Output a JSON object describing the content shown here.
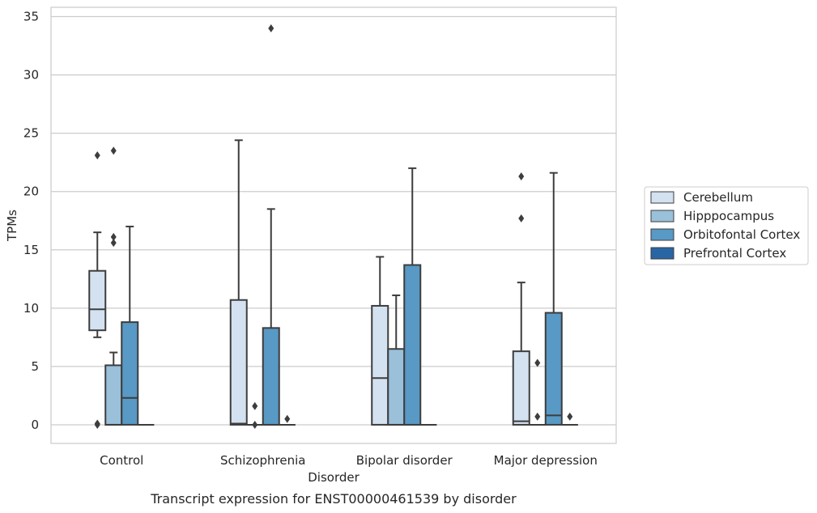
{
  "chart_data": {
    "type": "box",
    "title": "Transcript expression for ENST00000461539 by disorder",
    "xlabel": "Disorder",
    "ylabel": "TPMs",
    "ylim": [
      -1.6,
      35.8
    ],
    "yticks": [
      0,
      5,
      10,
      15,
      20,
      25,
      30,
      35
    ],
    "categories": [
      "Control",
      "Schizophrenia",
      "Bipolar disorder",
      "Major depression"
    ],
    "grid": "horizontal",
    "legend_position": "right",
    "series": [
      {
        "name": "Cerebellum",
        "color": "#d3e1f0",
        "boxes": [
          {
            "q1": 8.1,
            "median": 9.9,
            "q3": 13.2,
            "whisker_low": 7.5,
            "whisker_high": 16.5,
            "outliers": [
              23.1,
              0.0,
              0.1
            ]
          },
          {
            "q1": 0.0,
            "median": 0.1,
            "q3": 10.7,
            "whisker_low": 0.0,
            "whisker_high": 24.4,
            "outliers": []
          },
          {
            "q1": 0.0,
            "median": 4.0,
            "q3": 10.2,
            "whisker_low": 0.0,
            "whisker_high": 14.4,
            "outliers": []
          },
          {
            "q1": 0.0,
            "median": 0.3,
            "q3": 6.3,
            "whisker_low": 0.0,
            "whisker_high": 12.2,
            "outliers": [
              21.3,
              17.7
            ]
          }
        ]
      },
      {
        "name": "Hipppocampus",
        "color": "#9ac0da",
        "boxes": [
          {
            "q1": 0.0,
            "median": 0.0,
            "q3": 5.1,
            "whisker_low": 0.0,
            "whisker_high": 6.2,
            "outliers": [
              23.5,
              16.1,
              15.6
            ]
          },
          {
            "q1": 0.0,
            "median": 0.0,
            "q3": 0.0,
            "whisker_low": 0.0,
            "whisker_high": 0.0,
            "outliers": [
              1.6,
              0.0
            ]
          },
          {
            "q1": 0.0,
            "median": 0.0,
            "q3": 6.5,
            "whisker_low": 0.0,
            "whisker_high": 11.1,
            "outliers": []
          },
          {
            "q1": 0.0,
            "median": 0.0,
            "q3": 0.0,
            "whisker_low": 0.0,
            "whisker_high": 0.0,
            "outliers": [
              5.3,
              0.7
            ]
          }
        ]
      },
      {
        "name": "Orbitofontal Cortex",
        "color": "#5899c5",
        "boxes": [
          {
            "q1": 0.0,
            "median": 2.3,
            "q3": 8.8,
            "whisker_low": 0.0,
            "whisker_high": 17.0,
            "outliers": []
          },
          {
            "q1": 0.0,
            "median": 0.0,
            "q3": 8.3,
            "whisker_low": 0.0,
            "whisker_high": 18.5,
            "outliers": [
              34.0
            ]
          },
          {
            "q1": 0.0,
            "median": 0.0,
            "q3": 13.7,
            "whisker_low": 0.0,
            "whisker_high": 22.0,
            "outliers": []
          },
          {
            "q1": 0.0,
            "median": 0.8,
            "q3": 9.6,
            "whisker_low": 0.0,
            "whisker_high": 21.6,
            "outliers": []
          }
        ]
      },
      {
        "name": "Prefrontal Cortex",
        "color": "#2865a5",
        "boxes": [
          {
            "q1": 0.0,
            "median": 0.0,
            "q3": 0.0,
            "whisker_low": 0.0,
            "whisker_high": 0.0,
            "outliers": []
          },
          {
            "q1": 0.0,
            "median": 0.0,
            "q3": 0.0,
            "whisker_low": 0.0,
            "whisker_high": 0.0,
            "outliers": [
              0.5
            ]
          },
          {
            "q1": 0.0,
            "median": 0.0,
            "q3": 0.0,
            "whisker_low": 0.0,
            "whisker_high": 0.0,
            "outliers": []
          },
          {
            "q1": 0.0,
            "median": 0.0,
            "q3": 0.0,
            "whisker_low": 0.0,
            "whisker_high": 0.0,
            "outliers": [
              0.7
            ]
          }
        ]
      }
    ]
  }
}
